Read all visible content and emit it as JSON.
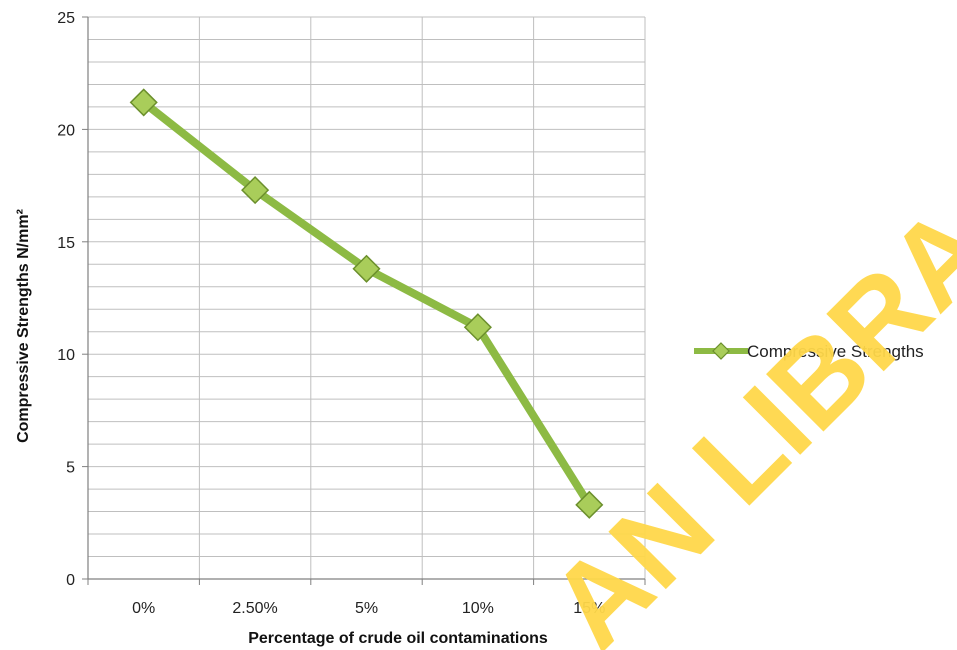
{
  "chart_data": {
    "type": "line",
    "title": "",
    "xlabel": "Percentage of crude oil contaminations",
    "ylabel": "Compressive Strengths N/mm²",
    "categories": [
      "0%",
      "2.50%",
      "5%",
      "10%",
      "15%"
    ],
    "series": [
      {
        "name": "Compressive Strengths",
        "values": [
          21.2,
          17.3,
          13.8,
          11.2,
          3.3
        ]
      }
    ],
    "ylim": [
      0,
      25
    ],
    "y_major_ticks": [
      0,
      5,
      10,
      15,
      20,
      25
    ],
    "y_minor_step": 1,
    "grid": true,
    "legend": "right",
    "colors": {
      "line": "#8dba44",
      "marker_fill": "#a9cd5a",
      "marker_edge": "#6b8f2c",
      "grid": "#bfbfbf",
      "axis": "#808080"
    }
  },
  "watermark": {
    "text": "AN LIBRA",
    "color": "#ffd84a"
  }
}
